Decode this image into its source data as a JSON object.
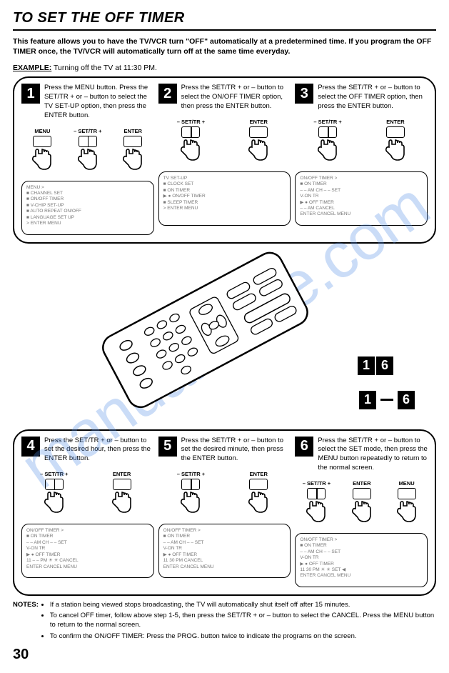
{
  "title": "TO SET THE OFF TIMER",
  "intro": "This feature allows you to have the TV/VCR turn \"OFF\" automatically at a predetermined time. If you program the OFF TIMER once, the TV/VCR will automatically turn off at the same time everyday.",
  "example_label": "EXAMPLE:",
  "example_text": "Turning off the TV at 11:30 PM.",
  "steps_top": [
    {
      "n": "1",
      "text": "Press the MENU button. Press the SET/TR + or – button to select the TV SET-UP option, then press the ENTER button.",
      "buttons": [
        "MENU",
        "– SET/TR +",
        "ENTER"
      ],
      "screen": [
        "MENU >",
        "■ CHANNEL SET",
        "■ ON/OFF TIMER",
        "■ V-CHIP SET-UP",
        "■ AUTO REPEAT ON/OFF",
        "■ LANGUAGE SET UP",
        "",
        "  > ENTER MENU"
      ]
    },
    {
      "n": "2",
      "text": "Press the SET/TR + or – button to select the ON/OFF TIMER option, then press the ENTER button.",
      "buttons": [
        "– SET/TR +",
        "ENTER"
      ],
      "screen": [
        "TV SET-UP",
        "■ CLOCK SET",
        "■ ON TIMER",
        "▶ ● ON/OFF TIMER",
        "■ SLEEP TIMER",
        "",
        "",
        "  > ENTER MENU"
      ]
    },
    {
      "n": "3",
      "text": "Press the SET/TR + or – button to select the OFF TIMER option, then press the ENTER button.",
      "buttons": [
        "– SET/TR +",
        "ENTER"
      ],
      "screen": [
        "ON/OFF TIMER >",
        "■ ON TIMER",
        "   – – AM   CH – – SET",
        "  V-ON TR",
        "▶ ● OFF TIMER",
        "   – – AM           CANCEL",
        "",
        "  ENTER CANCEL MENU"
      ]
    }
  ],
  "ref16": [
    "1",
    "6"
  ],
  "ref1_6": [
    "1",
    "6"
  ],
  "steps_bottom": [
    {
      "n": "4",
      "text": "Press the SET/TR + or – button to set the desired hour, then press the ENTER button.",
      "buttons": [
        "– SET/TR +",
        "ENTER"
      ],
      "screen": [
        "ON/OFF TIMER >",
        "■ ON TIMER",
        "   – – AM   CH – – SET",
        "  V-ON TR",
        "▶ ● OFF TIMER",
        "   11 – – PM  ☀ ☀  CANCEL",
        "",
        "  ENTER CANCEL MENU"
      ]
    },
    {
      "n": "5",
      "text": "Press the SET/TR + or – button to set the desired minute, then press the ENTER button.",
      "buttons": [
        "– SET/TR +",
        "ENTER"
      ],
      "screen": [
        "ON/OFF TIMER >",
        "■ ON TIMER",
        "   – – AM   CH – – SET",
        "  V-ON TR",
        "▶ ● OFF TIMER",
        "   11 30 PM         CANCEL",
        "",
        "  ENTER CANCEL MENU"
      ]
    },
    {
      "n": "6",
      "text": "Press the SET/TR + or – button to select the SET mode, then press the MENU button repeatedly to return to the normal screen.",
      "buttons": [
        "– SET/TR +",
        "ENTER",
        "MENU"
      ],
      "screen": [
        "ON/OFF TIMER >",
        "■ ON TIMER",
        "   – – AM   CH – – SET",
        "  V-ON TR",
        "▶ ● OFF TIMER",
        "   11 30 PM    ☀ ☀  SET ◀",
        "",
        "  ENTER CANCEL MENU"
      ]
    }
  ],
  "notes_label": "NOTES:",
  "notes": [
    "If a station being viewed stops broadcasting, the TV will automatically shut itself off after 15 minutes.",
    "To cancel OFF timer, follow above step 1-5, then press the SET/TR + or – button to select the CANCEL. Press the MENU button to return to the normal screen.",
    "To confirm the ON/OFF TIMER: Press the PROG. button twice to indicate the programs on the screen."
  ],
  "page": "30",
  "watermark": "manualshive.com"
}
